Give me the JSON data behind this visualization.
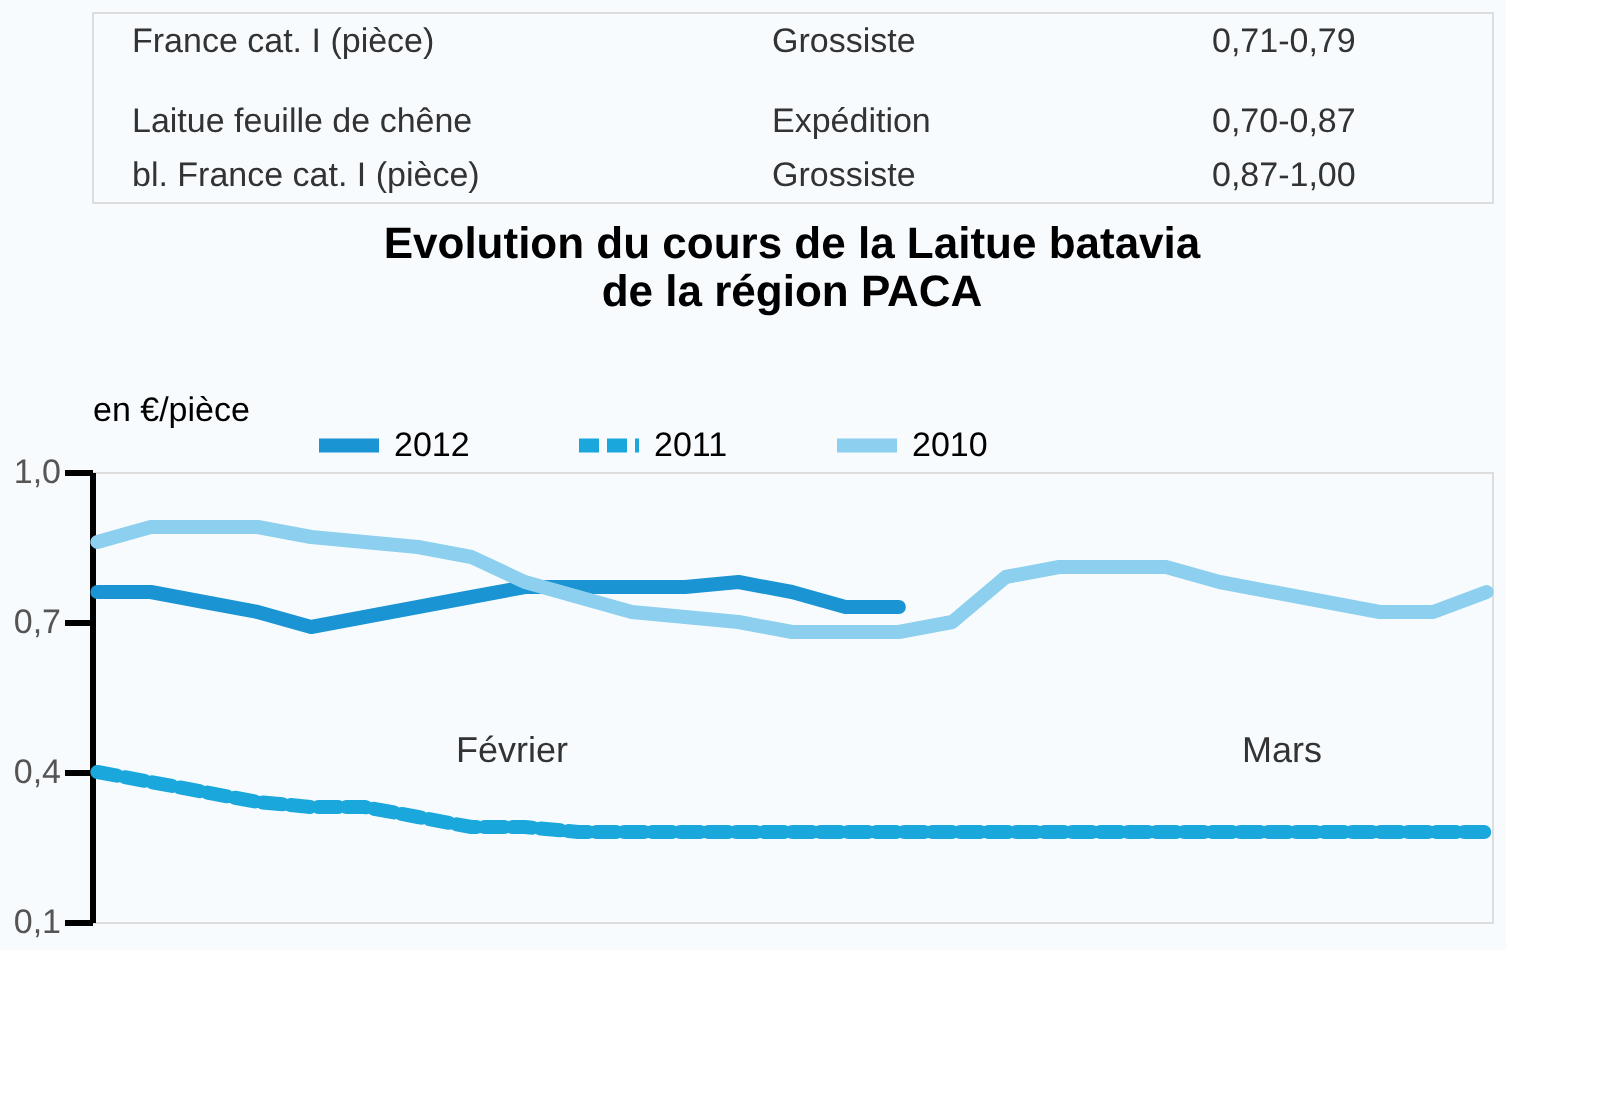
{
  "chart_data": [
    {
      "type": "other",
      "annotations": [
        "France cat. I (pièce)",
        "Grossiste",
        "0,71-0,79",
        "Laitue feuille de chêne",
        "bl. France cat. I (pièce)",
        "Expédition",
        "Grossiste",
        "0,70-0,87",
        "0,87-1,00"
      ]
    },
    {
      "type": "line",
      "title": "Evolution du cours de la Laitue batavia\nde la région PACA",
      "ylabel": "en €/pièce",
      "categories": [
        null,
        null,
        null,
        null,
        null,
        null,
        null,
        null,
        null,
        null,
        null,
        null,
        null,
        null,
        null,
        null,
        null,
        null,
        null,
        null,
        null,
        null,
        null,
        null,
        null,
        null,
        null
      ],
      "series": [
        {
          "name": "2012",
          "color": "#1a94d2",
          "line_style": "solid",
          "values": [
            0.76,
            0.76,
            0.74,
            0.72,
            0.69,
            0.71,
            0.73,
            0.75,
            0.77,
            0.77,
            0.77,
            0.77,
            0.78,
            0.76,
            0.73,
            0.73,
            null,
            null,
            null,
            null,
            null,
            null,
            null,
            null,
            null,
            null,
            null
          ]
        },
        {
          "name": "2011",
          "color": "#1aa8dc",
          "line_style": "dashed",
          "values": [
            0.4,
            0.38,
            0.36,
            0.34,
            0.33,
            0.33,
            0.31,
            0.29,
            0.29,
            0.28,
            0.28,
            0.28,
            0.28,
            0.28,
            0.28,
            0.28,
            0.28,
            0.28,
            0.28,
            0.28,
            0.28,
            0.28,
            0.28,
            0.28,
            0.28,
            0.28,
            0.28
          ]
        },
        {
          "name": "2010",
          "color": "#8ccfee",
          "line_style": "solid",
          "values": [
            0.86,
            0.89,
            0.89,
            0.89,
            0.87,
            0.86,
            0.85,
            0.83,
            0.78,
            0.75,
            0.72,
            0.71,
            0.7,
            0.68,
            0.68,
            0.68,
            0.7,
            0.79,
            0.81,
            0.81,
            0.81,
            0.78,
            0.76,
            0.74,
            0.72,
            0.72,
            0.76
          ]
        }
      ],
      "ylim": [
        0.1,
        1.0
      ],
      "yticks": [
        {
          "value": 0.1,
          "label": "0,1"
        },
        {
          "value": 0.4,
          "label": "0,4"
        },
        {
          "value": 0.7,
          "label": "0,7"
        },
        {
          "value": 1.0,
          "label": "1,0"
        }
      ],
      "annotations": [
        "Février",
        "Mars"
      ],
      "legend": "top",
      "grid": false,
      "tick_labels": "y"
    }
  ]
}
